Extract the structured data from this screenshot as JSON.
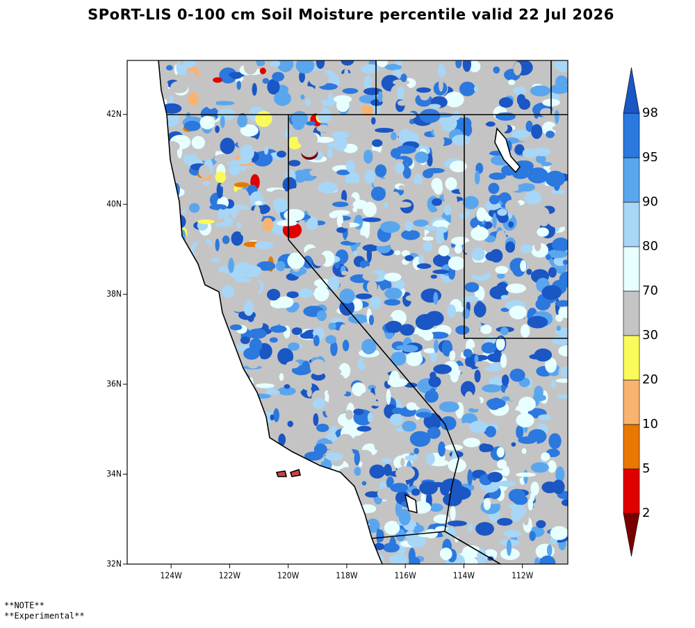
{
  "chart_data": {
    "type": "map",
    "title": "SPoRT-LIS 0-100 cm Soil Moisture percentile valid 22 Jul 2026",
    "xlim": [
      -125.5,
      -110.45
    ],
    "ylim": [
      32,
      43.2
    ],
    "xticks": [
      {
        "value": -124,
        "label": "124W"
      },
      {
        "value": -122,
        "label": "122W"
      },
      {
        "value": -120,
        "label": "120W"
      },
      {
        "value": -118,
        "label": "118W"
      },
      {
        "value": -116,
        "label": "116W"
      },
      {
        "value": -114,
        "label": "114W"
      },
      {
        "value": -112,
        "label": "112W"
      }
    ],
    "yticks": [
      {
        "value": 32,
        "label": "32N"
      },
      {
        "value": 34,
        "label": "34N"
      },
      {
        "value": 36,
        "label": "36N"
      },
      {
        "value": 38,
        "label": "38N"
      },
      {
        "value": 40,
        "label": "40N"
      },
      {
        "value": 42,
        "label": "42N"
      }
    ],
    "colorbar": {
      "levels": [
        2,
        5,
        10,
        20,
        30,
        70,
        80,
        90,
        95,
        98
      ],
      "colors": [
        "#7a0000",
        "#e00000",
        "#e87800",
        "#f9b370",
        "#fafa5a",
        "#c4c4c4",
        "#e8ffff",
        "#a8d6f6",
        "#5aa6ee",
        "#2b78de",
        "#1a56c4"
      ]
    },
    "notes": [
      "**NOTE**",
      "**Experimental**"
    ]
  }
}
